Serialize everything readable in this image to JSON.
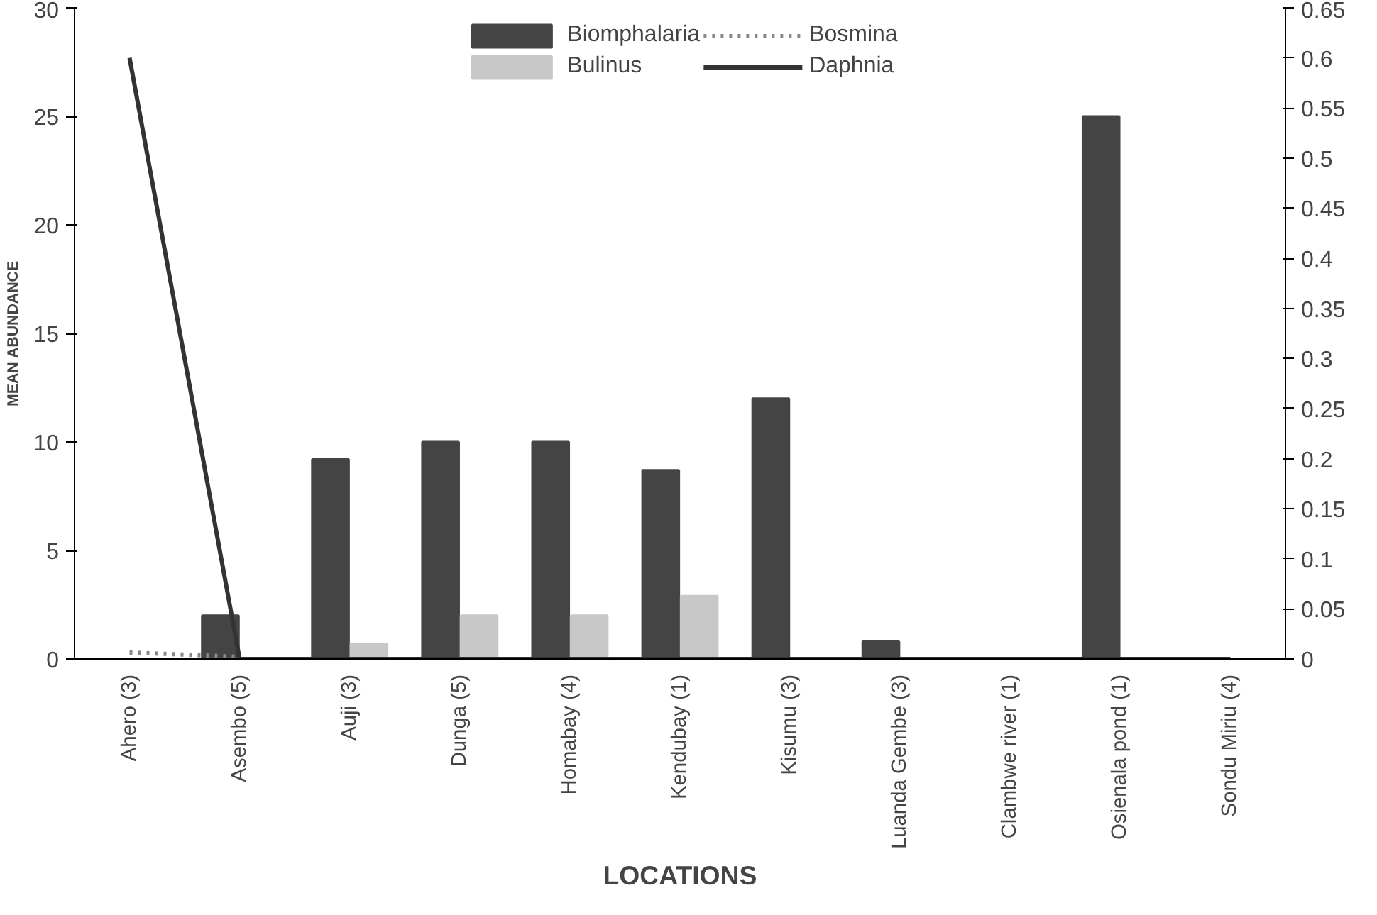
{
  "chart_data": {
    "type": "bar",
    "xlabel": "LOCATIONS",
    "ylabel": "MEAN ABUNDANCE",
    "categories": [
      "Ahero (3)",
      "Asembo (5)",
      "Auji (3)",
      "Dunga (5)",
      "Homabay (4)",
      "Kendubay (1)",
      "Kisumu (3)",
      "Luanda Gembe (3)",
      "Clambwe river (1)",
      "Osienala pond (1)",
      "Sondu Miriu (4)"
    ],
    "series": [
      {
        "name": "Biomphalaria",
        "color": "#444444",
        "values": [
          0,
          2,
          9.2,
          10,
          10,
          8.7,
          12,
          0.8,
          0,
          25,
          0
        ]
      },
      {
        "name": "Bulinus",
        "color": "#c8c8c8",
        "values": [
          0,
          0,
          0.7,
          2,
          2,
          2.9,
          0,
          0,
          0,
          0,
          0
        ]
      },
      {
        "name": "Bosmina",
        "type": "line",
        "color": "#888888",
        "line_style": "dotted",
        "values": [
          0.3,
          0.1,
          null,
          null,
          null,
          null,
          null,
          null,
          null,
          null,
          null
        ]
      },
      {
        "name": "Daphnia",
        "type": "line",
        "color": "#333333",
        "line_style": "solid",
        "axis": "y2",
        "values": [
          0.6,
          0,
          0,
          0,
          0,
          0,
          0,
          0,
          0,
          0,
          0
        ]
      }
    ],
    "ylim": [
      0,
      30
    ],
    "yticks": [
      0,
      5,
      10,
      15,
      20,
      25,
      30
    ],
    "y2lim": [
      0,
      0.65
    ],
    "y2ticks": [
      0,
      0.05,
      0.1,
      0.15,
      0.2,
      0.25,
      0.3,
      0.35,
      0.4,
      0.45,
      0.5,
      0.55,
      0.6,
      0.65
    ],
    "grid": false,
    "legend": "top"
  }
}
